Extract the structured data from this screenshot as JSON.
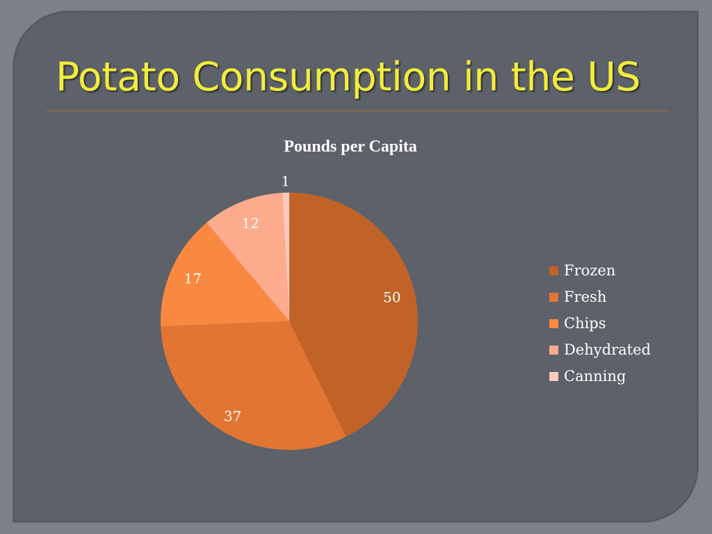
{
  "slide": {
    "title": "Potato Consumption in the US"
  },
  "chart_data": {
    "type": "pie",
    "title": "Pounds per Capita",
    "categories": [
      "Frozen",
      "Fresh",
      "Chips",
      "Dehydrated",
      "Canning"
    ],
    "values": [
      50,
      37,
      17,
      12,
      1
    ],
    "colors": [
      "#c16328",
      "#e37532",
      "#f98840",
      "#fcab8d",
      "#fdc9bd"
    ],
    "data_labels": [
      "50",
      "37",
      "17",
      "12",
      "1"
    ],
    "legend_position": "right",
    "start_angle": "top, clockwise"
  }
}
